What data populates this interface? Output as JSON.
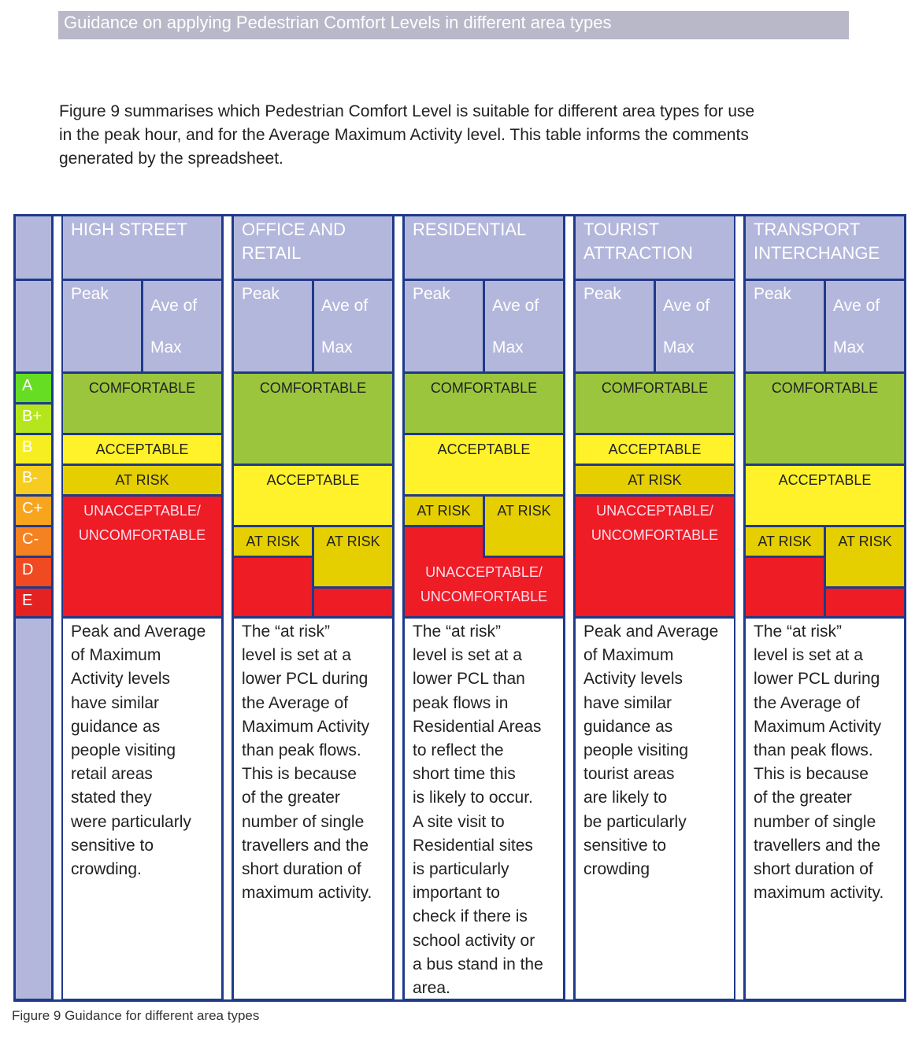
{
  "header": {
    "title": "Guidance on applying Pedestrian Comfort Levels in different area types"
  },
  "intro": [
    "Figure 9  summarises which Pedestrian Comfort Level is suitable for different area types for use",
    "in the peak hour, and for the Average Maximum Activity level. This table informs the comments",
    "generated by the spreadsheet."
  ],
  "table": {
    "levels": [
      "A",
      "B+",
      "B",
      "B-",
      "C+",
      "C-",
      "D",
      "E"
    ],
    "columns": [
      {
        "title": [
          "HIGH STREET"
        ],
        "peak": "Peak",
        "max": [
          "Ave of",
          "Max"
        ],
        "blocks": [
          {
            "label": [
              "COMFORTABLE"
            ]
          },
          {
            "label": [
              "ACCEPTABLE"
            ]
          },
          {
            "label": [
              "AT RISK"
            ]
          },
          {
            "label": [
              "UNACCEPTABLE/",
              "UNCOMFORTABLE"
            ]
          }
        ],
        "description": [
          "Peak and Average",
          "of Maximum",
          "Activity levels",
          "have similar",
          "guidance as",
          "people visiting",
          "retail areas",
          "stated they",
          "were particularly",
          "sensitive to",
          "crowding."
        ]
      },
      {
        "title": [
          "OFFICE AND",
          "RETAIL"
        ],
        "peak": "Peak",
        "max": [
          "Ave of",
          "Max"
        ],
        "blocks": [
          {
            "label": [
              "COMFORTABLE"
            ]
          },
          {
            "label": [
              "ACCEPTABLE"
            ]
          },
          {
            "label": [
              "AT RISK"
            ]
          },
          {
            "label": [
              "AT RISK"
            ]
          }
        ],
        "description": [
          "The “at risk”",
          "level is set at a",
          "lower PCL during",
          "the Average of",
          "Maximum Activity",
          "than peak flows.",
          "This is because",
          "of the greater",
          "number of single",
          "travellers and the",
          "short duration of",
          "maximum activity."
        ]
      },
      {
        "title": [
          "RESIDENTIAL"
        ],
        "peak": "Peak",
        "max": [
          "Ave of",
          "Max"
        ],
        "blocks": [
          {
            "label": [
              "COMFORTABLE"
            ]
          },
          {
            "label": [
              "ACCEPTABLE"
            ]
          },
          {
            "label": [
              "AT RISK"
            ]
          },
          {
            "label": [
              "AT RISK"
            ]
          },
          {
            "label": [
              "UNACCEPTABLE/",
              "UNCOMFORTABLE"
            ]
          }
        ],
        "description": [
          "The “at risk”",
          "level is set at a",
          "lower PCL  than",
          "peak flows in",
          "Residential Areas",
          "to reflect the",
          "short time this",
          "is likely to occur.",
          "A site visit to",
          "Residential sites",
          "is particularly",
          "important to",
          "check if there is",
          "school activity or",
          "a bus stand in the",
          "area."
        ]
      },
      {
        "title": [
          "TOURIST",
          "ATTRACTION"
        ],
        "peak": "Peak",
        "max": [
          "Ave of",
          "Max"
        ],
        "blocks": [
          {
            "label": [
              "COMFORTABLE"
            ]
          },
          {
            "label": [
              "ACCEPTABLE"
            ]
          },
          {
            "label": [
              "AT RISK"
            ]
          },
          {
            "label": [
              "UNACCEPTABLE/",
              "UNCOMFORTABLE"
            ]
          }
        ],
        "description": [
          "Peak and Average",
          "of Maximum",
          "Activity levels",
          "have similar",
          "guidance as",
          "people visiting",
          "tourist areas",
          "are likely to",
          "be particularly",
          "sensitive to",
          "crowding"
        ]
      },
      {
        "title": [
          "TRANSPORT",
          "INTERCHANGE"
        ],
        "peak": "Peak",
        "max": [
          "Ave of",
          "Max"
        ],
        "blocks": [
          {
            "label": [
              "COMFORTABLE"
            ]
          },
          {
            "label": [
              "ACCEPTABLE"
            ]
          },
          {
            "label": [
              "AT RISK"
            ]
          },
          {
            "label": [
              "AT RISK"
            ]
          }
        ],
        "description": [
          "The “at risk”",
          "level is set at a",
          "lower PCL during",
          "the Average of",
          "Maximum Activity",
          "than peak flows.",
          "This is because",
          "of the greater",
          "number of single",
          "travellers and the",
          "short duration of",
          "maximum activity."
        ]
      }
    ]
  },
  "caption": "Figure 9 Guidance for different area types"
}
